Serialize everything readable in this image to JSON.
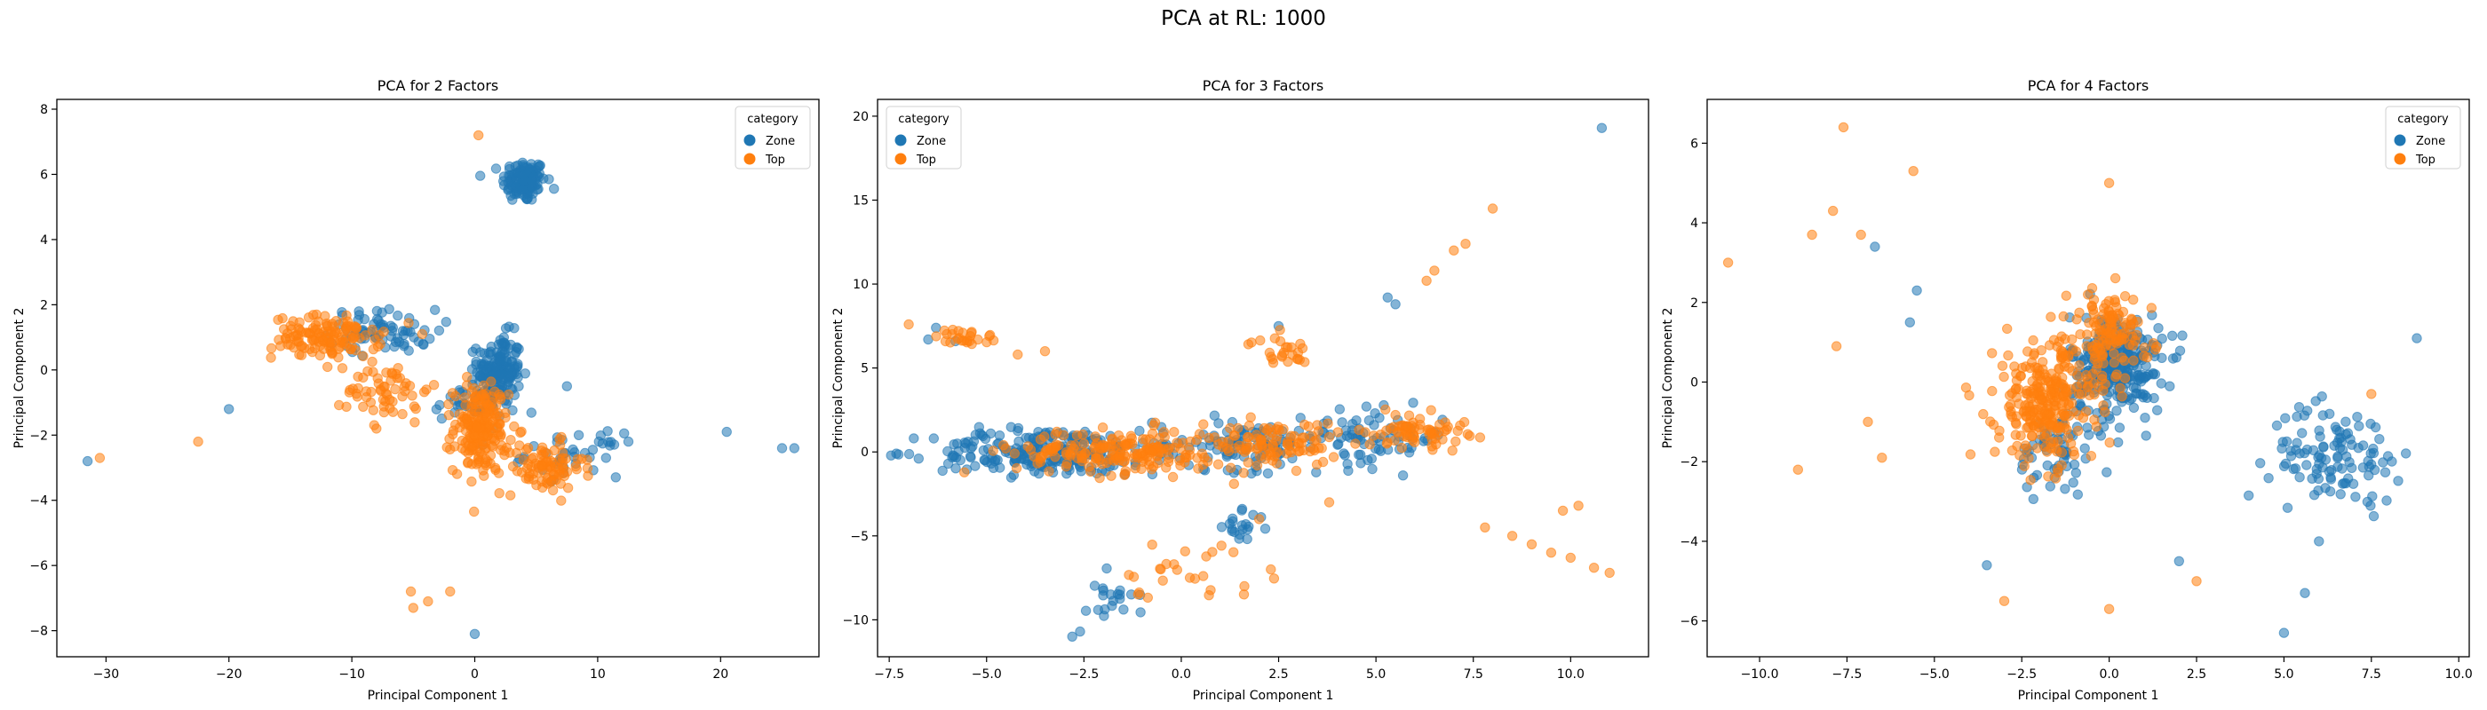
{
  "figure": {
    "suptitle": "PCA at RL: 1000"
  },
  "colors": {
    "Zone": "#1f77b4",
    "Top": "#ff7f0e"
  },
  "chart_data": [
    {
      "type": "scatter",
      "title": "PCA for 2 Factors",
      "xlabel": "Principal Component 1",
      "ylabel": "Principal Component 2",
      "xlim": [
        -34,
        28
      ],
      "ylim": [
        -8.8,
        8.3
      ],
      "xticks": [
        -30,
        -20,
        -10,
        0,
        10,
        20
      ],
      "yticks": [
        -8,
        -6,
        -4,
        -2,
        0,
        2,
        4,
        6,
        8
      ],
      "xtick_labels": [
        "−30",
        "−20",
        "−10",
        "0",
        "10",
        "20"
      ],
      "ytick_labels": [
        "−8",
        "−6",
        "−4",
        "−2",
        "0",
        "2",
        "4",
        "6",
        "8"
      ],
      "legend": {
        "title": "category",
        "position": "top-right",
        "entries": [
          "Zone",
          "Top"
        ]
      },
      "series": [
        {
          "name": "Zone",
          "color": "#1f77b4",
          "clusters": [
            {
              "center": [
                4.0,
                5.8
              ],
              "spread": [
                1.6,
                0.6
              ],
              "count": 130
            },
            {
              "center": [
                2.0,
                0.0
              ],
              "spread": [
                1.6,
                1.0
              ],
              "count": 160
            },
            {
              "center": [
                -7.5,
                1.2
              ],
              "spread": [
                4.0,
                0.6
              ],
              "count": 70
            },
            {
              "center": [
                0.0,
                -1.0
              ],
              "spread": [
                3.0,
                0.5
              ],
              "count": 50
            },
            {
              "center": [
                8.0,
                -2.6
              ],
              "spread": [
                3.5,
                0.6
              ],
              "count": 40
            }
          ],
          "points": [
            [
              -31.5,
              -2.8
            ],
            [
              -20,
              -1.2
            ],
            [
              20.5,
              -1.9
            ],
            [
              25,
              -2.4
            ],
            [
              26,
              -2.4
            ],
            [
              0,
              -8.1
            ],
            [
              12.5,
              -2.2
            ],
            [
              7.5,
              -0.5
            ]
          ]
        },
        {
          "name": "Top",
          "color": "#ff7f0e",
          "clusters": [
            {
              "center": [
                -12,
                1.0
              ],
              "spread": [
                4.0,
                0.6
              ],
              "count": 130
            },
            {
              "center": [
                0.5,
                -1.8
              ],
              "spread": [
                2.0,
                1.2
              ],
              "count": 200
            },
            {
              "center": [
                5.5,
                -3.0
              ],
              "spread": [
                3.0,
                0.7
              ],
              "count": 90
            },
            {
              "center": [
                -7,
                -0.6
              ],
              "spread": [
                3.0,
                0.9
              ],
              "count": 60
            }
          ],
          "points": [
            [
              -30.5,
              -2.7
            ],
            [
              -22.5,
              -2.2
            ],
            [
              -5.2,
              -6.8
            ],
            [
              -5.0,
              -7.3
            ],
            [
              -3.8,
              -7.1
            ],
            [
              -2.0,
              -6.8
            ],
            [
              0.3,
              7.2
            ],
            [
              -8,
              -1.8
            ]
          ]
        }
      ]
    },
    {
      "type": "scatter",
      "title": "PCA for 3 Factors",
      "xlabel": "Principal Component 1",
      "ylabel": "Principal Component 2",
      "xlim": [
        -7.8,
        12.0
      ],
      "ylim": [
        -12.2,
        21.0
      ],
      "xticks": [
        -7.5,
        -5.0,
        -2.5,
        0.0,
        2.5,
        5.0,
        7.5,
        10.0
      ],
      "yticks": [
        -10,
        -5,
        0,
        5,
        10,
        15,
        20
      ],
      "xtick_labels": [
        "−7.5",
        "−5.0",
        "−2.5",
        "0.0",
        "2.5",
        "5.0",
        "7.5",
        "10.0"
      ],
      "ytick_labels": [
        "−10",
        "−5",
        "0",
        "5",
        "10",
        "15",
        "20"
      ],
      "legend": {
        "title": "category",
        "position": "top-left",
        "entries": [
          "Zone",
          "Top"
        ]
      },
      "series": [
        {
          "name": "Zone",
          "color": "#1f77b4",
          "clusters": [
            {
              "center": [
                -3.5,
                0.0
              ],
              "spread": [
                2.6,
                1.3
              ],
              "count": 230
            },
            {
              "center": [
                1.5,
                0.5
              ],
              "spread": [
                2.0,
                1.4
              ],
              "count": 110
            },
            {
              "center": [
                5.0,
                0.8
              ],
              "spread": [
                1.6,
                1.5
              ],
              "count": 70
            },
            {
              "center": [
                -1.8,
                -8.5
              ],
              "spread": [
                0.6,
                1.5
              ],
              "count": 20
            },
            {
              "center": [
                1.5,
                -4.5
              ],
              "spread": [
                0.6,
                0.8
              ],
              "count": 20
            }
          ],
          "points": [
            [
              -6.3,
              7.4
            ],
            [
              -5.8,
              6.6
            ],
            [
              -6.5,
              6.7
            ],
            [
              5.3,
              9.2
            ],
            [
              5.5,
              8.8
            ],
            [
              10.8,
              19.3
            ],
            [
              -2.6,
              -10.7
            ],
            [
              -2.8,
              -11.0
            ],
            [
              2.5,
              7.5
            ]
          ]
        },
        {
          "name": "Top",
          "color": "#ff7f0e",
          "clusters": [
            {
              "center": [
                -1.5,
                0.0
              ],
              "spread": [
                2.5,
                1.2
              ],
              "count": 200
            },
            {
              "center": [
                2.5,
                0.5
              ],
              "spread": [
                1.4,
                1.2
              ],
              "count": 90
            },
            {
              "center": [
                6.0,
                1.3
              ],
              "spread": [
                1.2,
                0.9
              ],
              "count": 70
            },
            {
              "center": [
                -5.5,
                6.8
              ],
              "spread": [
                0.7,
                0.5
              ],
              "count": 25
            },
            {
              "center": [
                2.5,
                6.0
              ],
              "spread": [
                0.7,
                0.8
              ],
              "count": 25
            },
            {
              "center": [
                0.2,
                -7.0
              ],
              "spread": [
                1.8,
                1.6
              ],
              "count": 25
            }
          ],
          "points": [
            [
              -7.0,
              7.6
            ],
            [
              -4.2,
              5.8
            ],
            [
              -3.5,
              6.0
            ],
            [
              6.3,
              10.2
            ],
            [
              6.5,
              10.8
            ],
            [
              7.0,
              12.0
            ],
            [
              7.3,
              12.4
            ],
            [
              8.0,
              14.5
            ],
            [
              7.8,
              -4.5
            ],
            [
              8.5,
              -5.0
            ],
            [
              9.0,
              -5.5
            ],
            [
              9.5,
              -6.0
            ],
            [
              10.0,
              -6.3
            ],
            [
              10.6,
              -6.9
            ],
            [
              11.0,
              -7.2
            ],
            [
              9.8,
              -3.5
            ],
            [
              10.2,
              -3.2
            ],
            [
              3.8,
              -3.0
            ],
            [
              2.0,
              -4.0
            ],
            [
              2.3,
              -7.0
            ]
          ]
        }
      ]
    },
    {
      "type": "scatter",
      "title": "PCA for 4 Factors",
      "xlabel": "Principal Component 1",
      "ylabel": "Principal Component 2",
      "xlim": [
        -11.5,
        10.3
      ],
      "ylim": [
        -6.9,
        7.1
      ],
      "xticks": [
        -10.0,
        -7.5,
        -5.0,
        -2.5,
        0.0,
        2.5,
        5.0,
        7.5,
        10.0
      ],
      "yticks": [
        -6,
        -4,
        -2,
        0,
        2,
        4,
        6
      ],
      "xtick_labels": [
        "−10.0",
        "−7.5",
        "−5.0",
        "−2.5",
        "0.0",
        "2.5",
        "5.0",
        "7.5",
        "10.0"
      ],
      "ytick_labels": [
        "−6",
        "−4",
        "−2",
        "0",
        "2",
        "4",
        "6"
      ],
      "legend": {
        "title": "category",
        "position": "top-right",
        "entries": [
          "Zone",
          "Top"
        ]
      },
      "series": [
        {
          "name": "Zone",
          "color": "#1f77b4",
          "clusters": [
            {
              "center": [
                0.2,
                0.4
              ],
              "spread": [
                1.2,
                1.2
              ],
              "count": 300
            },
            {
              "center": [
                6.5,
                -1.8
              ],
              "spread": [
                1.7,
                1.1
              ],
              "count": 110
            },
            {
              "center": [
                -1.5,
                -1.8
              ],
              "spread": [
                1.0,
                1.0
              ],
              "count": 60
            }
          ],
          "points": [
            [
              -6.7,
              3.4
            ],
            [
              -5.7,
              1.5
            ],
            [
              -5.5,
              2.3
            ],
            [
              5.0,
              -6.3
            ],
            [
              5.6,
              -5.3
            ],
            [
              6.0,
              -4.0
            ],
            [
              8.8,
              1.1
            ],
            [
              -3.5,
              -4.6
            ],
            [
              2.0,
              -4.5
            ]
          ]
        },
        {
          "name": "Top",
          "color": "#ff7f0e",
          "clusters": [
            {
              "center": [
                -1.8,
                -0.5
              ],
              "spread": [
                1.3,
                1.4
              ],
              "count": 280
            },
            {
              "center": [
                0.0,
                1.2
              ],
              "spread": [
                1.1,
                1.0
              ],
              "count": 120
            }
          ],
          "points": [
            [
              -10.9,
              3.0
            ],
            [
              -8.5,
              3.7
            ],
            [
              -7.6,
              6.4
            ],
            [
              -7.9,
              4.3
            ],
            [
              -7.1,
              3.7
            ],
            [
              -5.6,
              5.3
            ],
            [
              -7.8,
              0.9
            ],
            [
              -6.5,
              -1.9
            ],
            [
              -6.9,
              -1.0
            ],
            [
              -8.9,
              -2.2
            ],
            [
              2.5,
              -5.0
            ],
            [
              0.0,
              -5.7
            ],
            [
              -3.0,
              -5.5
            ],
            [
              0.0,
              5.0
            ],
            [
              7.5,
              -0.3
            ]
          ]
        }
      ]
    }
  ]
}
